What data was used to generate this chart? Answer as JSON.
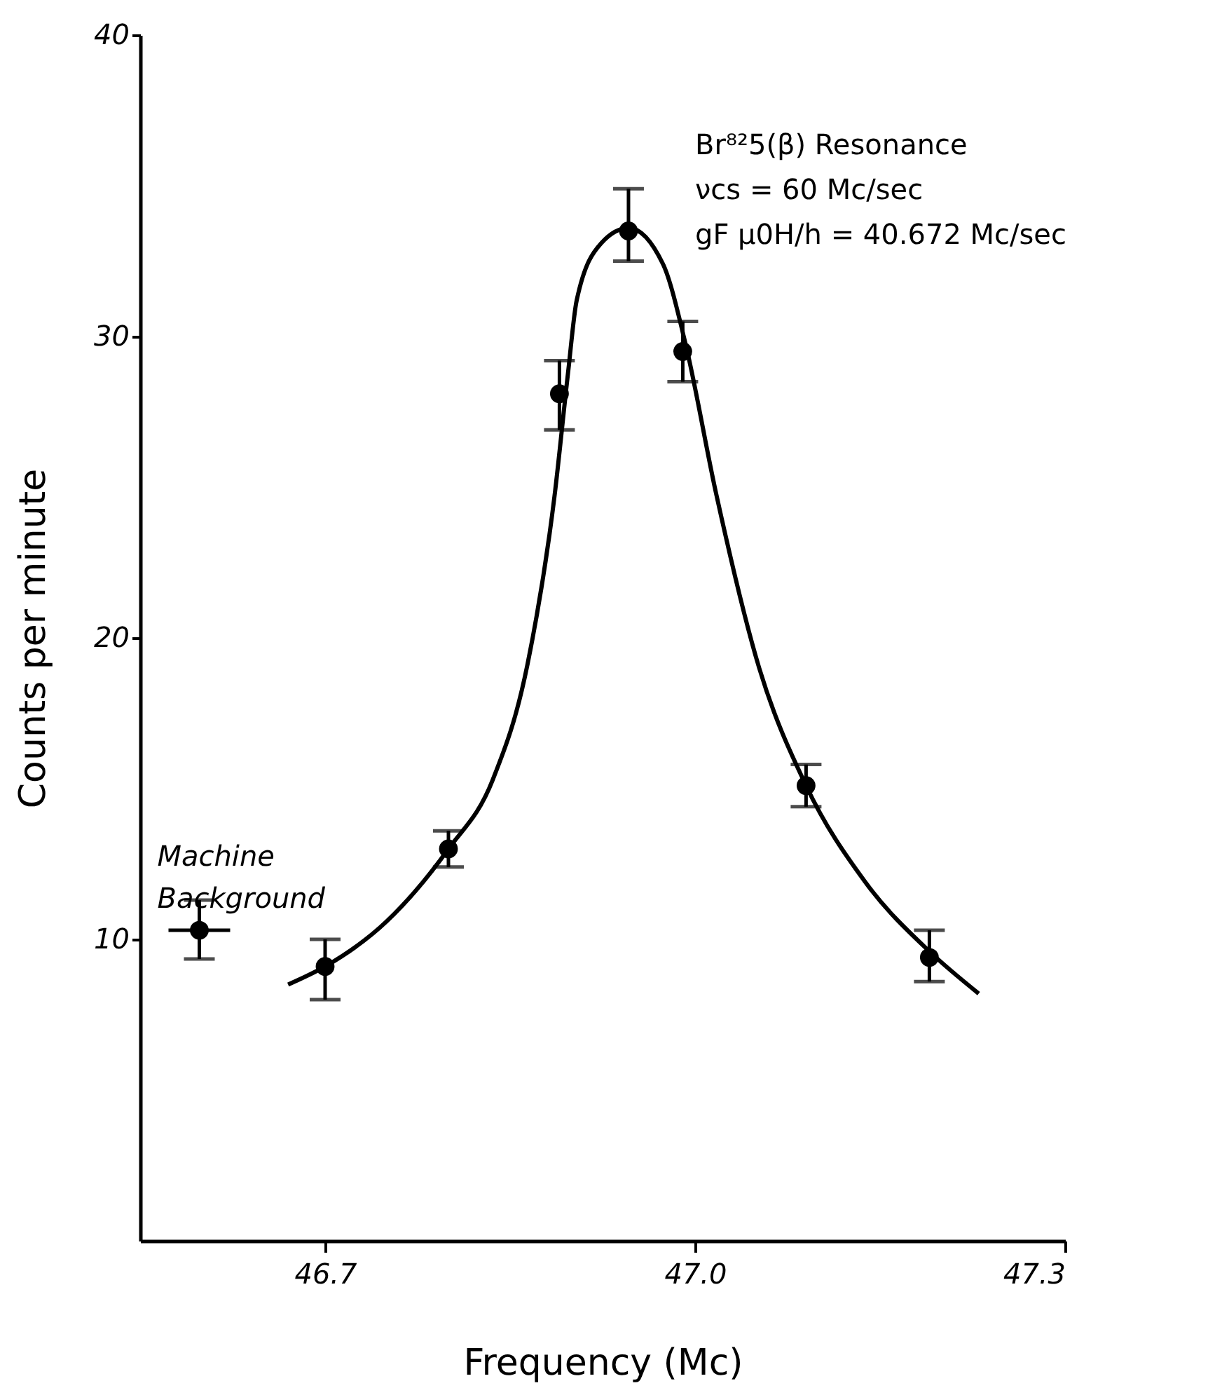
{
  "chart_data": {
    "type": "scatter",
    "xlabel": "Frequency (Mc)",
    "ylabel": "Counts per minute",
    "xlim": [
      46.55,
      47.3
    ],
    "xticks": [
      46.7,
      {
        "value": 47.0,
        "label": "47.0"
      },
      47.3
    ],
    "ylim": [
      0,
      40
    ],
    "yticks": [
      10,
      20,
      30,
      40
    ],
    "grid": false,
    "marker": "circle",
    "series": [
      {
        "color": "#000000",
        "x": [
          46.598,
          46.7,
          46.8,
          46.89,
          46.946,
          46.99,
          47.09,
          47.19
        ],
        "values": [
          10.3,
          9.1,
          13.0,
          28.1,
          33.5,
          29.5,
          15.1,
          9.4
        ],
        "errors": [
          [
            9.35,
            11.3
          ],
          [
            8.0,
            10.0
          ],
          [
            12.4,
            13.6
          ],
          [
            26.9,
            29.2
          ],
          [
            32.5,
            34.9
          ],
          [
            28.5,
            30.5
          ],
          [
            14.4,
            15.8
          ],
          [
            8.6,
            10.3
          ]
        ],
        "xerrors": [
          0.025,
          null,
          null,
          null,
          null,
          null,
          null,
          null
        ]
      },
      {
        "type": "line",
        "color": "#000000",
        "line_style": "solid",
        "marker": "none",
        "x": [
          46.67,
          46.7,
          46.75,
          46.8,
          46.836,
          46.864,
          46.886,
          46.897,
          46.904,
          46.924,
          46.946,
          46.974,
          46.992,
          47.017,
          47.052,
          47.09,
          47.138,
          47.19,
          47.23
        ],
        "values": [
          8.5,
          9.1,
          10.6,
          13.0,
          15.3,
          19.1,
          24.7,
          28.8,
          31.2,
          33.1,
          33.6,
          32.4,
          29.8,
          24.8,
          19.0,
          15.1,
          11.9,
          9.6,
          8.2
        ]
      }
    ],
    "annotations": [
      {
        "text": "Machine Background",
        "x": 46.598,
        "y": 10.3
      },
      "Br⁸²5(β) Resonance",
      "νcs = 60 Mc/sec",
      "gF μ0H/h = 40.672 Mc/sec"
    ]
  }
}
